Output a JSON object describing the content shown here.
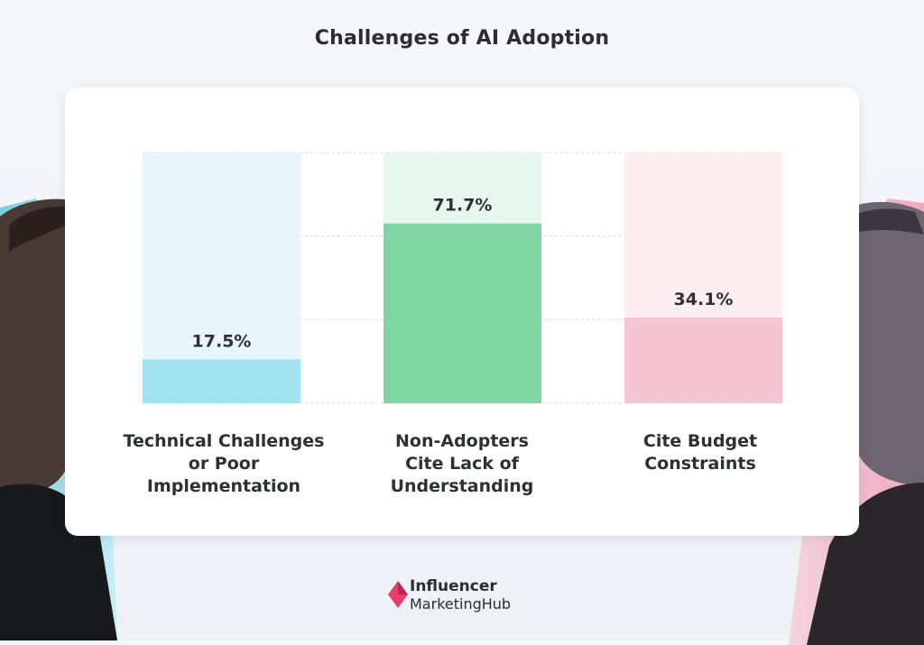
{
  "chart_data": {
    "type": "bar",
    "title": "Challenges of AI Adoption",
    "categories": [
      [
        "Technical Challenges",
        "or Poor",
        "Implementation"
      ],
      [
        "Non-Adopters",
        "Cite Lack of",
        "Understanding"
      ],
      [
        "Cite Budget",
        "Constraints"
      ]
    ],
    "values": [
      17.5,
      71.7,
      34.1
    ],
    "value_labels": [
      "17.5%",
      "71.7%",
      "34.1%"
    ],
    "ylim": [
      0,
      100
    ],
    "grid": true,
    "colors": [
      "#9ee3ef",
      "#7fd6a3",
      "#f6c5d3"
    ],
    "track_colors": [
      "#e6f6fa",
      "#e8f7ee",
      "#fdeef2"
    ]
  },
  "brand": {
    "line1": "Influencer",
    "line2": "MarketingHub",
    "accent": "#e83e6c"
  },
  "decor": {
    "left_figure": "human-man-profile",
    "right_figure": "robot-woman-profile"
  }
}
